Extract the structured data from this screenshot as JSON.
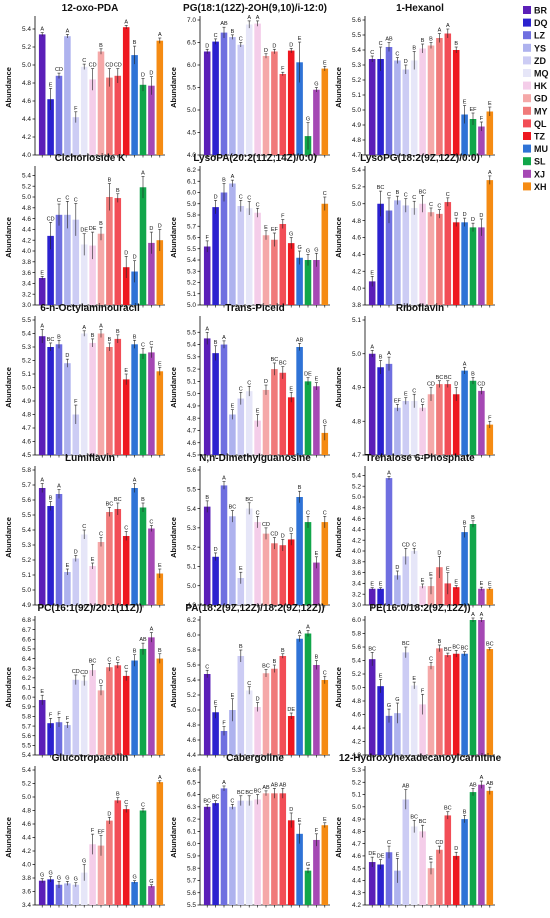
{
  "legend": [
    {
      "name": "BR",
      "color": "#5b1fb8"
    },
    {
      "name": "DQ",
      "color": "#2b21cf"
    },
    {
      "name": "LZ",
      "color": "#6f6fe0"
    },
    {
      "name": "YS",
      "color": "#aeb2ee"
    },
    {
      "name": "ZD",
      "color": "#ccccf4"
    },
    {
      "name": "MQ",
      "color": "#e6e6f8"
    },
    {
      "name": "HK",
      "color": "#f4cde9"
    },
    {
      "name": "GD",
      "color": "#f5a8a8"
    },
    {
      "name": "MY",
      "color": "#f07a7a"
    },
    {
      "name": "QL",
      "color": "#f24d56"
    },
    {
      "name": "TZ",
      "color": "#ee1820"
    },
    {
      "name": "MU",
      "color": "#2f73d6"
    },
    {
      "name": "SL",
      "color": "#11a64a"
    },
    {
      "name": "XJ",
      "color": "#a548b4"
    },
    {
      "name": "XH",
      "color": "#f58b13"
    }
  ],
  "chart_data": [
    {
      "type": "bar",
      "title": "12-oxo-PDA",
      "ylabel": "Abundance",
      "ylim": [
        4.0,
        5.5
      ],
      "yticks": [
        "4.0",
        "4.2",
        "4.4",
        "4.6",
        "4.8",
        "5.0",
        "5.2",
        "5.4"
      ],
      "values": [
        5.34,
        4.62,
        4.88,
        5.32,
        4.42,
        4.98,
        4.84,
        5.15,
        4.86,
        4.88,
        5.42,
        5.11,
        4.78,
        4.77,
        5.27
      ],
      "errors": [
        0.02,
        0.12,
        0.03,
        0.02,
        0.06,
        0.03,
        0.12,
        0.03,
        0.1,
        0.08,
        0.02,
        0.1,
        0.07,
        0.1,
        0.03
      ],
      "letters": [
        "A",
        "E",
        "CD",
        "A",
        "F",
        "C",
        "CD",
        "B",
        "CD",
        "CD",
        "A",
        "B",
        "D",
        "D",
        "A"
      ]
    },
    {
      "type": "bar",
      "title": "PG(18:1(12Z)-2OH(9,10)/i-12:0)",
      "ylabel": "Abundance",
      "ylim": [
        4.0,
        7.0
      ],
      "yticks": [
        "4.0",
        "4.5",
        "5.0",
        "5.5",
        "6.0",
        "6.5",
        "7.0"
      ],
      "values": [
        6.3,
        6.52,
        6.72,
        6.62,
        6.45,
        6.9,
        6.92,
        6.2,
        6.3,
        5.8,
        6.32,
        6.06,
        4.42,
        5.45,
        5.92
      ],
      "errors": [
        0.05,
        0.06,
        0.12,
        0.05,
        0.05,
        0.08,
        0.06,
        0.05,
        0.05,
        0.04,
        0.05,
        0.45,
        0.3,
        0.05,
        0.05
      ],
      "letters": [
        "D",
        "C",
        "AB",
        "B",
        "C",
        "A",
        "A",
        "D",
        "D",
        "F",
        "D",
        "E",
        "G",
        "G",
        "E"
      ]
    },
    {
      "type": "bar",
      "title": "1-Hexanol",
      "ylabel": "Abundance",
      "ylim": [
        4.7,
        5.6
      ],
      "yticks": [
        "4.7",
        "4.8",
        "4.9",
        "5.0",
        "5.1",
        "5.2",
        "5.3",
        "5.4",
        "5.5",
        "5.6"
      ],
      "values": [
        5.34,
        5.34,
        5.42,
        5.33,
        5.27,
        5.33,
        5.41,
        5.43,
        5.48,
        5.51,
        5.4,
        4.97,
        4.94,
        4.89,
        4.99
      ],
      "errors": [
        0.02,
        0.08,
        0.03,
        0.02,
        0.03,
        0.06,
        0.03,
        0.02,
        0.03,
        0.03,
        0.02,
        0.06,
        0.04,
        0.03,
        0.03
      ],
      "letters": [
        "C",
        "C",
        "AB",
        "C",
        "D",
        "B",
        "B",
        "B",
        "A",
        "A",
        "B",
        "E",
        "EF",
        "F",
        "E"
      ]
    },
    {
      "type": "bar",
      "title": "Cichorioside K",
      "ylabel": "Abundance",
      "ylim": [
        3.0,
        5.5
      ],
      "yticks": [
        "3.0",
        "3.2",
        "3.4",
        "3.6",
        "3.8",
        "4.0",
        "4.2",
        "4.4",
        "4.6",
        "4.8",
        "5.0",
        "5.2",
        "5.4"
      ],
      "values": [
        3.5,
        4.28,
        4.67,
        4.67,
        4.58,
        4.12,
        4.1,
        4.32,
        5.0,
        4.98,
        3.7,
        3.62,
        5.18,
        4.15,
        4.2
      ],
      "errors": [
        0.03,
        0.25,
        0.2,
        0.25,
        0.3,
        0.2,
        0.25,
        0.12,
        0.25,
        0.08,
        0.2,
        0.2,
        0.2,
        0.2,
        0.2
      ],
      "letters": [
        "E",
        "CD",
        "C",
        "C",
        "C",
        "DE",
        "DE",
        "B",
        "B",
        "B",
        "D",
        "D",
        "A",
        "D",
        "D"
      ]
    },
    {
      "type": "bar",
      "title": "LysoPA(20:2(11Z,14Z)/0:0)",
      "ylabel": "Abundance",
      "ylim": [
        5.0,
        6.2
      ],
      "yticks": [
        "5.0",
        "5.1",
        "5.2",
        "5.3",
        "5.4",
        "5.5",
        "5.6",
        "5.7",
        "5.8",
        "5.9",
        "6.0",
        "6.1",
        "6.2"
      ],
      "values": [
        5.52,
        5.87,
        6.0,
        6.08,
        5.88,
        5.86,
        5.82,
        5.62,
        5.58,
        5.72,
        5.55,
        5.42,
        5.4,
        5.4,
        5.9
      ],
      "errors": [
        0.05,
        0.06,
        0.08,
        0.03,
        0.05,
        0.06,
        0.04,
        0.04,
        0.06,
        0.04,
        0.05,
        0.06,
        0.05,
        0.06,
        0.06
      ],
      "letters": [
        "F",
        "D",
        "B",
        "A",
        "C",
        "C",
        "C",
        "E",
        "EF",
        "F",
        "G",
        "G",
        "G",
        "G",
        "C"
      ]
    },
    {
      "type": "bar",
      "title": "LysoPG(18:2(9Z,12Z)/0:0)",
      "ylabel": "Abundance",
      "ylim": [
        3.8,
        5.4
      ],
      "yticks": [
        "3.8",
        "4.0",
        "4.2",
        "4.4",
        "4.6",
        "4.8",
        "5.0",
        "5.2",
        "5.4"
      ],
      "values": [
        4.08,
        5.0,
        4.92,
        5.04,
        4.98,
        4.95,
        5.0,
        4.9,
        4.88,
        5.02,
        4.78,
        4.78,
        4.72,
        4.72,
        5.28
      ],
      "errors": [
        0.06,
        0.15,
        0.15,
        0.05,
        0.08,
        0.08,
        0.1,
        0.05,
        0.05,
        0.05,
        0.05,
        0.05,
        0.05,
        0.1,
        0.05
      ],
      "letters": [
        "E",
        "BC",
        "C",
        "B",
        "C",
        "C",
        "BC",
        "C",
        "C",
        "C",
        "D",
        "D",
        "D",
        "D",
        "A"
      ]
    },
    {
      "type": "bar",
      "title": "6-n-Octylaminouracil",
      "ylabel": "Abundance",
      "ylim": [
        4.5,
        5.5
      ],
      "yticks": [
        "4.5",
        "4.6",
        "4.7",
        "4.8",
        "4.9",
        "5.0",
        "5.1",
        "5.2",
        "5.3",
        "5.4",
        "5.5"
      ],
      "values": [
        5.38,
        5.3,
        5.32,
        5.18,
        4.8,
        5.4,
        5.33,
        5.4,
        5.3,
        5.36,
        5.06,
        5.32,
        5.25,
        5.26,
        5.12
      ],
      "errors": [
        0.05,
        0.03,
        0.03,
        0.03,
        0.07,
        0.02,
        0.03,
        0.03,
        0.03,
        0.03,
        0.04,
        0.03,
        0.04,
        0.04,
        0.03
      ],
      "letters": [
        "A",
        "BC",
        "B",
        "D",
        "F",
        "A",
        "B",
        "A",
        "B",
        "B",
        "E",
        "B",
        "C",
        "C",
        "E"
      ]
    },
    {
      "type": "bar",
      "title": "Trans-Piceid",
      "ylabel": "Abundance",
      "ylim": [
        4.5,
        5.6
      ],
      "yticks": [
        "4.5",
        "4.6",
        "4.7",
        "4.8",
        "4.9",
        "5.0",
        "5.1",
        "5.2",
        "5.3",
        "5.4",
        "5.5"
      ],
      "values": [
        5.45,
        5.33,
        5.4,
        4.83,
        4.96,
        5.02,
        4.78,
        5.03,
        5.2,
        5.17,
        4.97,
        5.38,
        5.1,
        5.06,
        4.68
      ],
      "errors": [
        0.05,
        0.06,
        0.03,
        0.04,
        0.05,
        0.04,
        0.05,
        0.04,
        0.05,
        0.05,
        0.04,
        0.03,
        0.03,
        0.03,
        0.06
      ],
      "letters": [
        "A",
        "B",
        "A",
        "E",
        "C",
        "C",
        "E",
        "D",
        "BC",
        "BC",
        "E",
        "AB",
        "DE",
        "E",
        "G"
      ]
    },
    {
      "type": "bar",
      "title": "Riboflavin",
      "ylabel": "Abundance",
      "ylim": [
        4.7,
        5.1
      ],
      "yticks": [
        "4.7",
        "4.8",
        "4.9",
        "5.0",
        "5.1"
      ],
      "values": [
        5.0,
        4.96,
        4.97,
        4.84,
        4.86,
        4.86,
        4.84,
        4.88,
        4.91,
        4.91,
        4.88,
        4.95,
        4.92,
        4.89,
        4.79
      ],
      "errors": [
        0.01,
        0.02,
        0.02,
        0.01,
        0.01,
        0.02,
        0.01,
        0.02,
        0.01,
        0.01,
        0.02,
        0.01,
        0.01,
        0.01,
        0.01
      ],
      "letters": [
        "A",
        "B",
        "A",
        "EF",
        "E",
        "C",
        "C",
        "CD",
        "BC",
        "BC",
        "D",
        "A",
        "B",
        "CD",
        "F"
      ]
    },
    {
      "type": "bar",
      "title": "Lumiflavin",
      "ylabel": "Abundance",
      "ylim": [
        4.9,
        5.8
      ],
      "yticks": [
        "4.9",
        "5.0",
        "5.1",
        "5.2",
        "5.3",
        "5.4",
        "5.5",
        "5.6",
        "5.7",
        "5.8"
      ],
      "values": [
        5.68,
        5.56,
        5.64,
        5.12,
        5.21,
        5.37,
        5.16,
        5.32,
        5.52,
        5.54,
        5.36,
        5.68,
        5.55,
        5.41,
        5.11
      ],
      "errors": [
        0.03,
        0.03,
        0.03,
        0.02,
        0.02,
        0.03,
        0.02,
        0.03,
        0.03,
        0.04,
        0.03,
        0.03,
        0.03,
        0.02,
        0.03
      ],
      "letters": [
        "A",
        "B",
        "A",
        "E",
        "D",
        "C",
        "E",
        "C",
        "BC",
        "BC",
        "C",
        "A",
        "B",
        "C",
        "E"
      ]
    },
    {
      "type": "bar",
      "title": "N,n-Dimethylguanosine",
      "ylabel": "Abundance",
      "ylim": [
        4.9,
        5.6
      ],
      "yticks": [
        "4.9",
        "5.0",
        "5.1",
        "5.2",
        "5.3",
        "5.4",
        "5.5",
        "5.6"
      ],
      "values": [
        5.41,
        5.15,
        5.52,
        5.36,
        5.04,
        5.4,
        5.33,
        5.27,
        5.22,
        5.21,
        5.24,
        5.46,
        5.33,
        5.12,
        5.33
      ],
      "errors": [
        0.03,
        0.02,
        0.02,
        0.03,
        0.03,
        0.03,
        0.03,
        0.03,
        0.03,
        0.03,
        0.03,
        0.03,
        0.03,
        0.03,
        0.03
      ],
      "letters": [
        "B",
        "D",
        "A",
        "BC",
        "E",
        "BC",
        "C",
        "CD",
        "CD",
        "D",
        "D",
        "B",
        "C",
        "E",
        "C"
      ]
    },
    {
      "type": "bar",
      "title": "Trehalose 6-Phosphate",
      "ylabel": "Abundance",
      "ylim": [
        3.0,
        5.5
      ],
      "yticks": [
        "3.0",
        "3.2",
        "3.4",
        "3.6",
        "3.8",
        "4.0",
        "4.2",
        "4.4",
        "4.6",
        "4.8",
        "5.0",
        "5.2",
        "5.4"
      ],
      "values": [
        3.3,
        3.3,
        5.35,
        3.55,
        3.9,
        4.0,
        3.35,
        3.35,
        3.7,
        3.4,
        3.33,
        4.35,
        4.5,
        3.3,
        3.3
      ],
      "errors": [
        0.02,
        0.02,
        0.03,
        0.08,
        0.15,
        0.05,
        0.04,
        0.15,
        0.2,
        0.2,
        0.03,
        0.1,
        0.06,
        0.03,
        0.02
      ],
      "letters": [
        "E",
        "E",
        "A",
        "D",
        "CD",
        "C",
        "E",
        "E",
        "D",
        "E",
        "E",
        "B",
        "B",
        "E",
        "E"
      ]
    },
    {
      "type": "bar",
      "title": "PC(16:1(9Z)/20:1(11Z))",
      "ylabel": "Abundance",
      "ylim": [
        5.4,
        6.8
      ],
      "yticks": [
        "5.4",
        "5.5",
        "5.6",
        "5.7",
        "5.8",
        "5.9",
        "6.0",
        "6.1",
        "6.2",
        "6.3",
        "6.4",
        "6.5",
        "6.6",
        "6.7",
        "6.8"
      ],
      "values": [
        5.97,
        5.73,
        5.74,
        5.71,
        6.18,
        6.17,
        6.28,
        6.07,
        6.31,
        6.33,
        6.22,
        6.38,
        6.5,
        6.62,
        6.4
      ],
      "errors": [
        0.05,
        0.05,
        0.05,
        0.03,
        0.05,
        0.05,
        0.06,
        0.05,
        0.04,
        0.03,
        0.05,
        0.06,
        0.06,
        0.05,
        0.05
      ],
      "letters": [
        "E",
        "F",
        "F",
        "F",
        "CD",
        "CD",
        "BC",
        "D",
        "C",
        "C",
        "C",
        "B",
        "AB",
        "A",
        "B"
      ]
    },
    {
      "type": "bar",
      "title": "PA(18:2(9Z,12Z)/18:2(9Z,12Z))",
      "ylabel": "Abundance",
      "ylim": [
        4.4,
        6.2
      ],
      "yticks": [
        "4.4",
        "4.6",
        "4.8",
        "5.0",
        "5.2",
        "5.4",
        "5.6",
        "5.8",
        "6.0",
        "6.2"
      ],
      "values": [
        5.48,
        4.97,
        4.72,
        5.0,
        5.72,
        5.26,
        5.04,
        5.49,
        5.55,
        5.72,
        4.92,
        5.95,
        6.02,
        5.6,
        5.4
      ],
      "errors": [
        0.05,
        0.08,
        0.06,
        0.15,
        0.08,
        0.05,
        0.06,
        0.05,
        0.05,
        0.03,
        0.04,
        0.04,
        0.04,
        0.06,
        0.05
      ],
      "letters": [
        "C",
        "E",
        "F",
        "E",
        "B",
        "C",
        "D",
        "BC",
        "B",
        "B",
        "DE",
        "A",
        "A",
        "B",
        "C"
      ]
    },
    {
      "type": "bar",
      "title": "PE(16:0/18:2(9Z,12Z))",
      "ylabel": "Abundance",
      "ylim": [
        4.0,
        6.0
      ],
      "yticks": [
        "4.0",
        "4.2",
        "4.4",
        "4.6",
        "4.8",
        "5.0",
        "5.2",
        "5.4",
        "5.6",
        "5.8",
        "6.0"
      ],
      "values": [
        5.42,
        5.02,
        4.58,
        4.62,
        5.52,
        5.03,
        4.75,
        5.32,
        5.58,
        5.48,
        5.5,
        5.5,
        6.0,
        6.0,
        5.57
      ],
      "errors": [
        0.1,
        0.1,
        0.1,
        0.15,
        0.08,
        0.05,
        0.15,
        0.05,
        0.05,
        0.03,
        0.05,
        0.03,
        0.03,
        0.03,
        0.02
      ],
      "letters": [
        "BC",
        "E",
        "G",
        "G",
        "BC",
        "E",
        "F",
        "C",
        "B",
        "BC",
        "BC",
        "BC",
        "A",
        "A",
        "BC"
      ]
    },
    {
      "type": "bar",
      "title": "Glucotropaeolin",
      "ylabel": "Abundance",
      "ylim": [
        3.4,
        5.4
      ],
      "yticks": [
        "3.4",
        "3.6",
        "3.8",
        "4.0",
        "4.2",
        "4.4",
        "4.6",
        "4.8",
        "5.0",
        "5.2",
        "5.4"
      ],
      "values": [
        3.76,
        3.78,
        3.7,
        3.72,
        3.7,
        3.88,
        4.3,
        4.28,
        4.65,
        4.95,
        4.82,
        3.74,
        4.8,
        3.68,
        5.22
      ],
      "errors": [
        0.03,
        0.04,
        0.05,
        0.03,
        0.03,
        0.12,
        0.15,
        0.15,
        0.05,
        0.04,
        0.05,
        0.02,
        0.03,
        0.02,
        0.02
      ],
      "letters": [
        "G",
        "G",
        "G",
        "G",
        "G",
        "G",
        "F",
        "EF",
        "D",
        "B",
        "C",
        "G",
        "C",
        "G",
        "A"
      ]
    },
    {
      "type": "bar",
      "title": "Cabergoline",
      "ylabel": "Abundance",
      "ylim": [
        5.5,
        6.6
      ],
      "yticks": [
        "5.5",
        "5.6",
        "5.7",
        "5.8",
        "5.9",
        "6.0",
        "6.1",
        "6.2",
        "6.3",
        "6.4",
        "6.5",
        "6.6"
      ],
      "values": [
        6.3,
        6.33,
        6.45,
        6.3,
        6.35,
        6.35,
        6.36,
        6.41,
        6.41,
        6.41,
        6.19,
        6.08,
        5.78,
        6.03,
        6.15
      ],
      "errors": [
        0.02,
        0.02,
        0.02,
        0.02,
        0.04,
        0.04,
        0.04,
        0.02,
        0.04,
        0.04,
        0.06,
        0.08,
        0.02,
        0.05,
        0.02
      ],
      "letters": [
        "BC",
        "BC",
        "A",
        "C",
        "BC",
        "BC",
        "BC",
        "AB",
        "AB",
        "AB",
        "D",
        "E",
        "G",
        "F",
        "E"
      ]
    },
    {
      "type": "bar",
      "title": "12-Hydroxyhexadecanoylcarnitine",
      "ylabel": "Abundance",
      "ylim": [
        4.2,
        5.3
      ],
      "yticks": [
        "4.2",
        "4.3",
        "4.4",
        "4.5",
        "4.6",
        "4.7",
        "4.8",
        "4.9",
        "5.0",
        "5.1",
        "5.2",
        "5.3"
      ],
      "values": [
        4.55,
        4.53,
        4.63,
        4.48,
        5.06,
        4.84,
        4.8,
        4.5,
        4.65,
        4.93,
        4.6,
        4.9,
        5.12,
        5.18,
        5.13
      ],
      "errors": [
        0.04,
        0.04,
        0.05,
        0.1,
        0.08,
        0.05,
        0.05,
        0.05,
        0.03,
        0.03,
        0.03,
        0.03,
        0.03,
        0.03,
        0.03
      ],
      "letters": [
        "DE",
        "DE",
        "C",
        "E",
        "AB",
        "BC",
        "BC",
        "E",
        "CD",
        "BC",
        "D",
        "B",
        "AB",
        "A",
        "AB"
      ]
    }
  ]
}
